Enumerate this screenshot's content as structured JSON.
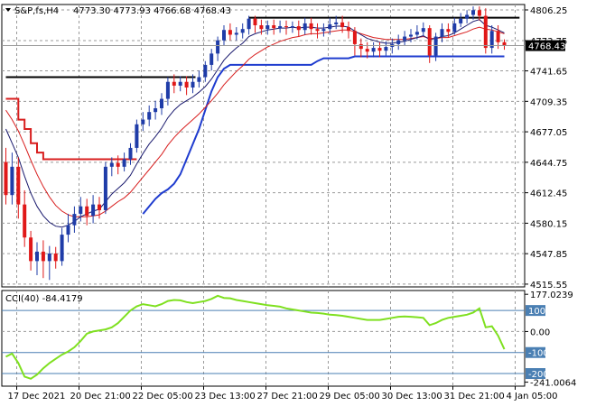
{
  "header": {
    "symbol": "S&P,fs,H4",
    "ohlc": "4773.30 4773.93 4766.68 4768.43",
    "indicator": "CCI(40) -84.4179"
  },
  "colors": {
    "bull": "#1f3ca8",
    "bear": "#e01818",
    "ma_fast": "#1a1a6e",
    "ma_slow": "#d81e1e",
    "channel_upper": "#d81e1e",
    "channel_lower": "#1f3ccf",
    "cci": "#7fe020",
    "price_tag": "#000000",
    "cci_levels": "#4a7fb3"
  },
  "chart_data": [
    {
      "type": "candlestick",
      "title": "",
      "ylim": [
        4512.62,
        4812.0
      ],
      "y_ticks": [
        "4806.25",
        "4773.75",
        "4741.65",
        "4709.35",
        "4677.05",
        "4644.75",
        "4612.45",
        "4580.15",
        "4547.85",
        "4515.55"
      ],
      "y_tick_values": [
        4806.25,
        4773.75,
        4741.65,
        4709.35,
        4677.05,
        4644.75,
        4612.45,
        4580.15,
        4547.85,
        4515.55
      ],
      "current_price_label": "4768.43",
      "current_price": 4768.43,
      "x_labels": [
        "17 Dec 2021",
        "20 Dec 21:00",
        "22 Dec 05:00",
        "23 Dec 13:00",
        "27 Dec 21:00",
        "29 Dec 05:00",
        "30 Dec 13:00",
        "31 Dec 21:00",
        "4 Jan 05:00"
      ],
      "x_label_bars": [
        0,
        10,
        20,
        30,
        40,
        50,
        60,
        70,
        80
      ],
      "grid": true,
      "candles": [
        [
          4645,
          4610,
          4660,
          4600
        ],
        [
          4610,
          4640,
          4655,
          4600
        ],
        [
          4640,
          4600,
          4650,
          4585
        ],
        [
          4600,
          4565,
          4615,
          4555
        ],
        [
          4565,
          4540,
          4572,
          4530
        ],
        [
          4540,
          4550,
          4560,
          4525
        ],
        [
          4550,
          4540,
          4562,
          4522
        ],
        [
          4540,
          4548,
          4556,
          4520
        ],
        [
          4548,
          4540,
          4555,
          4532
        ],
        [
          4540,
          4568,
          4575,
          4535
        ],
        [
          4568,
          4578,
          4590,
          4560
        ],
        [
          4578,
          4590,
          4598,
          4570
        ],
        [
          4590,
          4598,
          4608,
          4582
        ],
        [
          4598,
          4588,
          4606,
          4578
        ],
        [
          4588,
          4600,
          4610,
          4580
        ],
        [
          4600,
          4594,
          4608,
          4585
        ],
        [
          4594,
          4640,
          4645,
          4590
        ],
        [
          4640,
          4644,
          4650,
          4630
        ],
        [
          4644,
          4640,
          4652,
          4632
        ],
        [
          4640,
          4648,
          4655,
          4635
        ],
        [
          4648,
          4660,
          4665,
          4642
        ],
        [
          4660,
          4685,
          4690,
          4655
        ],
        [
          4685,
          4690,
          4698,
          4678
        ],
        [
          4690,
          4698,
          4705,
          4683
        ],
        [
          4698,
          4702,
          4710,
          4690
        ],
        [
          4702,
          4712,
          4718,
          4695
        ],
        [
          4712,
          4730,
          4735,
          4705
        ],
        [
          4730,
          4726,
          4738,
          4718
        ],
        [
          4726,
          4730,
          4736,
          4720
        ],
        [
          4730,
          4724,
          4736,
          4716
        ],
        [
          4724,
          4730,
          4738,
          4718
        ],
        [
          4730,
          4735,
          4742,
          4724
        ],
        [
          4735,
          4748,
          4752,
          4730
        ],
        [
          4748,
          4760,
          4765,
          4742
        ],
        [
          4760,
          4774,
          4778,
          4752
        ],
        [
          4774,
          4785,
          4790,
          4768
        ],
        [
          4785,
          4780,
          4792,
          4774
        ],
        [
          4780,
          4782,
          4788,
          4774
        ],
        [
          4782,
          4786,
          4792,
          4776
        ],
        [
          4786,
          4797,
          4800,
          4780
        ],
        [
          4797,
          4790,
          4800,
          4782
        ],
        [
          4790,
          4786,
          4796,
          4780
        ],
        [
          4786,
          4790,
          4795,
          4780
        ],
        [
          4790,
          4787,
          4796,
          4780
        ],
        [
          4787,
          4789,
          4795,
          4782
        ],
        [
          4789,
          4788,
          4795,
          4780
        ],
        [
          4788,
          4789,
          4794,
          4782
        ],
        [
          4789,
          4785,
          4795,
          4778
        ],
        [
          4785,
          4792,
          4798,
          4780
        ],
        [
          4792,
          4786,
          4798,
          4780
        ],
        [
          4786,
          4784,
          4792,
          4776
        ],
        [
          4784,
          4786,
          4792,
          4778
        ],
        [
          4786,
          4791,
          4798,
          4780
        ],
        [
          4791,
          4793,
          4800,
          4786
        ],
        [
          4793,
          4788,
          4800,
          4782
        ],
        [
          4788,
          4784,
          4794,
          4776
        ],
        [
          4784,
          4770,
          4788,
          4758
        ],
        [
          4770,
          4765,
          4776,
          4756
        ],
        [
          4765,
          4762,
          4772,
          4755
        ],
        [
          4762,
          4766,
          4772,
          4756
        ],
        [
          4766,
          4763,
          4772,
          4756
        ],
        [
          4763,
          4767,
          4773,
          4758
        ],
        [
          4767,
          4770,
          4776,
          4760
        ],
        [
          4770,
          4774,
          4780,
          4764
        ],
        [
          4774,
          4778,
          4784,
          4768
        ],
        [
          4778,
          4780,
          4786,
          4772
        ],
        [
          4780,
          4783,
          4790,
          4775
        ],
        [
          4783,
          4787,
          4793,
          4778
        ],
        [
          4787,
          4758,
          4790,
          4750
        ],
        [
          4758,
          4778,
          4782,
          4752
        ],
        [
          4778,
          4786,
          4792,
          4772
        ],
        [
          4786,
          4783,
          4792,
          4777
        ],
        [
          4783,
          4792,
          4798,
          4780
        ],
        [
          4792,
          4797,
          4803,
          4788
        ],
        [
          4797,
          4801,
          4806,
          4792
        ],
        [
          4801,
          4806,
          4810,
          4796
        ],
        [
          4806,
          4800,
          4810,
          4795
        ],
        [
          4800,
          4766,
          4808,
          4760
        ],
        [
          4766,
          4784,
          4790,
          4760
        ],
        [
          4784,
          4772,
          4790,
          4765
        ],
        [
          4772,
          4768.43,
          4775,
          4764
        ]
      ],
      "ma_fast": [
        4680,
        4665,
        4650,
        4630,
        4612,
        4598,
        4588,
        4581,
        4577,
        4576,
        4578,
        4582,
        4587,
        4590,
        4593,
        4595,
        4603,
        4611,
        4617,
        4623,
        4631,
        4643,
        4654,
        4664,
        4672,
        4681,
        4692,
        4700,
        4706,
        4710,
        4714,
        4719,
        4725,
        4733,
        4743,
        4753,
        4760,
        4766,
        4771,
        4778,
        4781,
        4783,
        4785,
        4786,
        4787,
        4787,
        4788,
        4787,
        4788,
        4788,
        4787,
        4787,
        4788,
        4789,
        4789,
        4788,
        4784,
        4780,
        4776,
        4774,
        4772,
        4771,
        4771,
        4772,
        4773,
        4775,
        4777,
        4779,
        4775,
        4776,
        4778,
        4779,
        4782,
        4786,
        4790,
        4794,
        4796,
        4790,
        4788,
        4785,
        4782
      ],
      "ma_slow": [
        4700,
        4690,
        4678,
        4663,
        4647,
        4632,
        4619,
        4608,
        4599,
        4593,
        4589,
        4587,
        4587,
        4587,
        4588,
        4589,
        4593,
        4598,
        4603,
        4607,
        4613,
        4621,
        4629,
        4637,
        4645,
        4653,
        4663,
        4671,
        4678,
        4684,
        4690,
        4696,
        4703,
        4710,
        4718,
        4727,
        4734,
        4741,
        4747,
        4754,
        4759,
        4763,
        4767,
        4770,
        4773,
        4775,
        4777,
        4778,
        4780,
        4781,
        4781,
        4782,
        4783,
        4784,
        4785,
        4785,
        4783,
        4781,
        4779,
        4777,
        4776,
        4775,
        4775,
        4775,
        4775,
        4776,
        4777,
        4778,
        4776,
        4776,
        4777,
        4777,
        4779,
        4781,
        4783,
        4786,
        4788,
        4786,
        4785,
        4783,
        4781
      ],
      "upper_channel": [
        4712,
        4712,
        4690,
        4680,
        4665,
        4655,
        4648,
        4648,
        4648,
        4648,
        4648,
        4648,
        4648,
        4648,
        4648,
        4648,
        4648,
        4648,
        4648,
        4648,
        4648,
        4648,
        null,
        null,
        null,
        null,
        null,
        null,
        null,
        null,
        null,
        null,
        null,
        null,
        null,
        null,
        null,
        null,
        null,
        null,
        null,
        null,
        null,
        null,
        null,
        null,
        null,
        null,
        null,
        null,
        null,
        null,
        null,
        null,
        null,
        null,
        null,
        null,
        null,
        null,
        null,
        null,
        null,
        null,
        null,
        null,
        null,
        null,
        null,
        null,
        null,
        null,
        null,
        null,
        null,
        null,
        null,
        null,
        null,
        null,
        null
      ],
      "lower_channel": [
        null,
        null,
        null,
        null,
        null,
        null,
        null,
        null,
        null,
        null,
        null,
        null,
        null,
        null,
        null,
        null,
        null,
        null,
        null,
        null,
        null,
        null,
        4590,
        4598,
        4606,
        4612,
        4616,
        4622,
        4632,
        4648,
        4664,
        4680,
        4700,
        4720,
        4735,
        4744,
        4748,
        4748,
        4748,
        4748,
        4748,
        4748,
        4748,
        4748,
        4748,
        4748,
        4748,
        4748,
        4748,
        4748,
        4752,
        4755,
        4755,
        4755,
        4755,
        4755,
        4757,
        4757,
        4757,
        4757,
        4757,
        4757,
        4757,
        4757,
        4757,
        4757,
        4757,
        4757,
        4757,
        4757,
        4757,
        4757,
        4757,
        4757,
        4757,
        4757,
        4757,
        4757,
        4757,
        4757,
        4757
      ],
      "resistance_lines": [
        {
          "value": 4798,
          "from_bar": 39,
          "to_bar": 82
        },
        {
          "value": 4735,
          "from_bar": 0,
          "to_bar": 30
        }
      ]
    },
    {
      "type": "line",
      "title": "",
      "ylim": [
        -260,
        195
      ],
      "y_ticks": [
        "177.0239",
        "100",
        "0.00",
        "-100",
        "-200",
        "-241.0064"
      ],
      "y_tick_values": [
        177.0239,
        100,
        0,
        -100,
        -200,
        -241.0064
      ],
      "level_lines": [
        100,
        -100,
        -200
      ],
      "series": [
        {
          "values": [
            -120,
            -105,
            -150,
            -215,
            -225,
            -205,
            -175,
            -150,
            -130,
            -110,
            -95,
            -75,
            -45,
            -10,
            0,
            5,
            10,
            20,
            40,
            70,
            100,
            120,
            130,
            125,
            120,
            130,
            145,
            150,
            148,
            140,
            135,
            140,
            145,
            155,
            170,
            160,
            158,
            150,
            145,
            140,
            135,
            130,
            125,
            122,
            118,
            110,
            105,
            100,
            95,
            90,
            88,
            85,
            80,
            78,
            75,
            70,
            65,
            60,
            55,
            55,
            55,
            60,
            65,
            70,
            72,
            70,
            68,
            65,
            30,
            40,
            55,
            65,
            70,
            75,
            80,
            90,
            110,
            20,
            25,
            -20,
            -84.4179
          ]
        }
      ]
    }
  ]
}
